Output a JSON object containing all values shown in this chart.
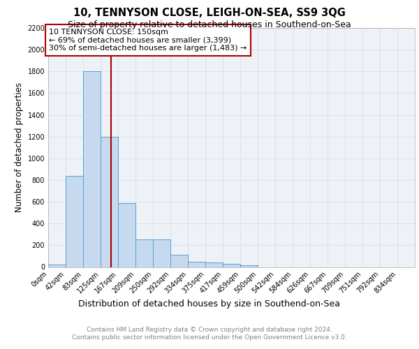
{
  "title1": "10, TENNYSON CLOSE, LEIGH-ON-SEA, SS9 3QG",
  "title2": "Size of property relative to detached houses in Southend-on-Sea",
  "xlabel": "Distribution of detached houses by size in Southend-on-Sea",
  "ylabel": "Number of detached properties",
  "bin_labels": [
    "0sqm",
    "42sqm",
    "83sqm",
    "125sqm",
    "167sqm",
    "209sqm",
    "250sqm",
    "292sqm",
    "334sqm",
    "375sqm",
    "417sqm",
    "459sqm",
    "500sqm",
    "542sqm",
    "584sqm",
    "626sqm",
    "667sqm",
    "709sqm",
    "751sqm",
    "792sqm",
    "834sqm"
  ],
  "bin_edges": [
    0,
    42,
    83,
    125,
    167,
    209,
    250,
    292,
    334,
    375,
    417,
    459,
    500,
    542,
    584,
    626,
    667,
    709,
    751,
    792,
    834
  ],
  "bin_widths": [
    42,
    41,
    42,
    42,
    42,
    41,
    42,
    42,
    41,
    42,
    42,
    41,
    42,
    42,
    42,
    41,
    42,
    42,
    41,
    42
  ],
  "counts": [
    25,
    840,
    1800,
    1200,
    590,
    255,
    255,
    115,
    47,
    40,
    27,
    18,
    0,
    0,
    0,
    0,
    0,
    0,
    0,
    0
  ],
  "bar_color": "#c6d9ee",
  "bar_edgecolor": "#5a9fd4",
  "property_size": 150,
  "red_line_color": "#aa0000",
  "annotation_text": "10 TENNYSON CLOSE: 150sqm\n← 69% of detached houses are smaller (3,399)\n30% of semi-detached houses are larger (1,483) →",
  "annotation_box_edgecolor": "#aa0000",
  "ylim": [
    0,
    2200
  ],
  "yticks": [
    0,
    200,
    400,
    600,
    800,
    1000,
    1200,
    1400,
    1600,
    1800,
    2000,
    2200
  ],
  "footer1": "Contains HM Land Registry data © Crown copyright and database right 2024.",
  "footer2": "Contains public sector information licensed under the Open Government Licence v3.0.",
  "bg_color": "#eef2f7",
  "grid_color": "#d8e2ed",
  "title1_fontsize": 10.5,
  "title2_fontsize": 9,
  "tick_fontsize": 7,
  "ylabel_fontsize": 8.5,
  "xlabel_fontsize": 9,
  "footer_fontsize": 6.5,
  "annot_fontsize": 8
}
